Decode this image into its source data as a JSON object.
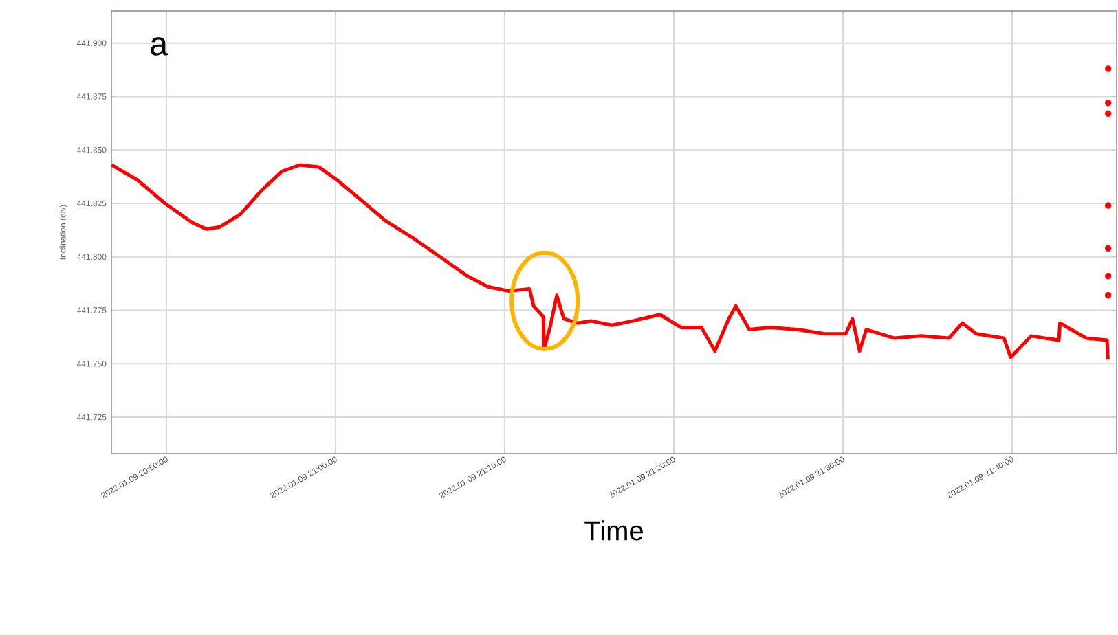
{
  "chart_data": {
    "type": "line",
    "xlabel": "Time",
    "ylabel": "Inclination (div)",
    "annotations": [
      "a"
    ],
    "xlim": [
      "2022-01-09T20:46:45",
      "2022-01-09T21:46:11"
    ],
    "ylim": [
      441.708,
      441.915
    ],
    "xticks": [
      {
        "value": "2022-01-09T20:50",
        "label": "2022.01.09 20:50:00"
      },
      {
        "value": "2022-01-09T21:00",
        "label": "2022.01.09 21:00:00"
      },
      {
        "value": "2022-01-09T21:10",
        "label": "2022.01.09 21:10:00"
      },
      {
        "value": "2022-01-09T21:20",
        "label": "2022.01.09 21:20:00"
      },
      {
        "value": "2022-01-09T21:30",
        "label": "2022.01.09 21:30:00"
      },
      {
        "value": "2022-01-09T21:40",
        "label": "2022.01.09 21:40:00"
      }
    ],
    "yticks": [
      {
        "value": 441.725,
        "label": "441.725"
      },
      {
        "value": 441.75,
        "label": "441.750"
      },
      {
        "value": 441.775,
        "label": "441.775"
      },
      {
        "value": 441.8,
        "label": "441.800"
      },
      {
        "value": 441.825,
        "label": "441.825"
      },
      {
        "value": 441.85,
        "label": "441.850"
      },
      {
        "value": 441.875,
        "label": "441.875"
      },
      {
        "value": 441.9,
        "label": "441.900"
      }
    ],
    "grid": true,
    "series": [
      {
        "color": "#ff0000",
        "x": [
          "2022-01-09T20:46:45",
          "2022-01-09T20:48:17",
          "2022-01-09T20:49:55",
          "2022-01-09T20:51:32",
          "2022-01-09T20:52:22",
          "2022-01-09T20:53:10",
          "2022-01-09T20:54:23",
          "2022-01-09T20:55:37",
          "2022-01-09T20:56:50",
          "2022-01-09T20:57:53",
          "2022-01-09T20:59:01",
          "2022-01-09T21:00:05",
          "2022-01-09T21:01:18",
          "2022-01-09T21:02:56",
          "2022-01-09T21:04:33",
          "2022-01-09T21:06:11",
          "2022-01-09T21:07:48",
          "2022-01-09T21:09:01",
          "2022-01-09T21:10:14",
          "2022-01-09T21:11:28",
          "2022-01-09T21:11:43",
          "2022-01-09T21:12:17",
          "2022-01-09T21:12:20",
          "2022-01-09T21:12:41",
          "2022-01-09T21:13:05",
          "2022-01-09T21:13:30",
          "2022-01-09T21:14:19",
          "2022-01-09T21:15:07",
          "2022-01-09T21:16:20",
          "2022-01-09T21:17:34",
          "2022-01-09T21:19:11",
          "2022-01-09T21:20:25",
          "2022-01-09T21:21:38",
          "2022-01-09T21:22:26",
          "2022-01-09T21:23:15",
          "2022-01-09T21:23:40",
          "2022-01-09T21:24:28",
          "2022-01-09T21:25:41",
          "2022-01-09T21:27:19",
          "2022-01-09T21:28:56",
          "2022-01-09T21:30:10",
          "2022-01-09T21:30:34",
          "2022-01-09T21:30:59",
          "2022-01-09T21:31:23",
          "2022-01-09T21:33:01",
          "2022-01-09T21:34:38",
          "2022-01-09T21:36:16",
          "2022-01-09T21:37:04",
          "2022-01-09T21:37:53",
          "2022-01-09T21:39:31",
          "2022-01-09T21:39:55",
          "2022-01-09T21:41:08",
          "2022-01-09T21:42:46",
          "2022-01-09T21:42:50",
          "2022-01-09T21:44:23",
          "2022-01-09T21:45:37",
          "2022-01-09T21:45:40"
        ],
        "values": [
          441.843,
          441.836,
          441.825,
          441.816,
          441.813,
          441.814,
          441.82,
          441.831,
          441.84,
          441.843,
          441.842,
          441.836,
          441.828,
          441.817,
          441.809,
          441.8,
          441.791,
          441.786,
          441.784,
          441.785,
          441.777,
          441.772,
          441.757,
          441.767,
          441.782,
          441.771,
          441.769,
          441.77,
          441.768,
          441.77,
          441.773,
          441.767,
          441.767,
          441.756,
          441.771,
          441.777,
          441.766,
          441.767,
          441.766,
          441.764,
          441.764,
          441.771,
          441.756,
          441.766,
          441.762,
          441.763,
          441.762,
          441.769,
          441.764,
          441.762,
          441.753,
          441.763,
          441.761,
          441.769,
          441.762,
          441.761,
          441.752
        ]
      },
      {
        "type": "scatter",
        "color": "#ff0000",
        "x": [
          "2022-01-09T21:45:41",
          "2022-01-09T21:45:41",
          "2022-01-09T21:45:41",
          "2022-01-09T21:45:41",
          "2022-01-09T21:45:41",
          "2022-01-09T21:45:41",
          "2022-01-09T21:45:41"
        ],
        "values": [
          441.888,
          441.872,
          441.867,
          441.824,
          441.804,
          441.791,
          441.782
        ]
      }
    ]
  }
}
